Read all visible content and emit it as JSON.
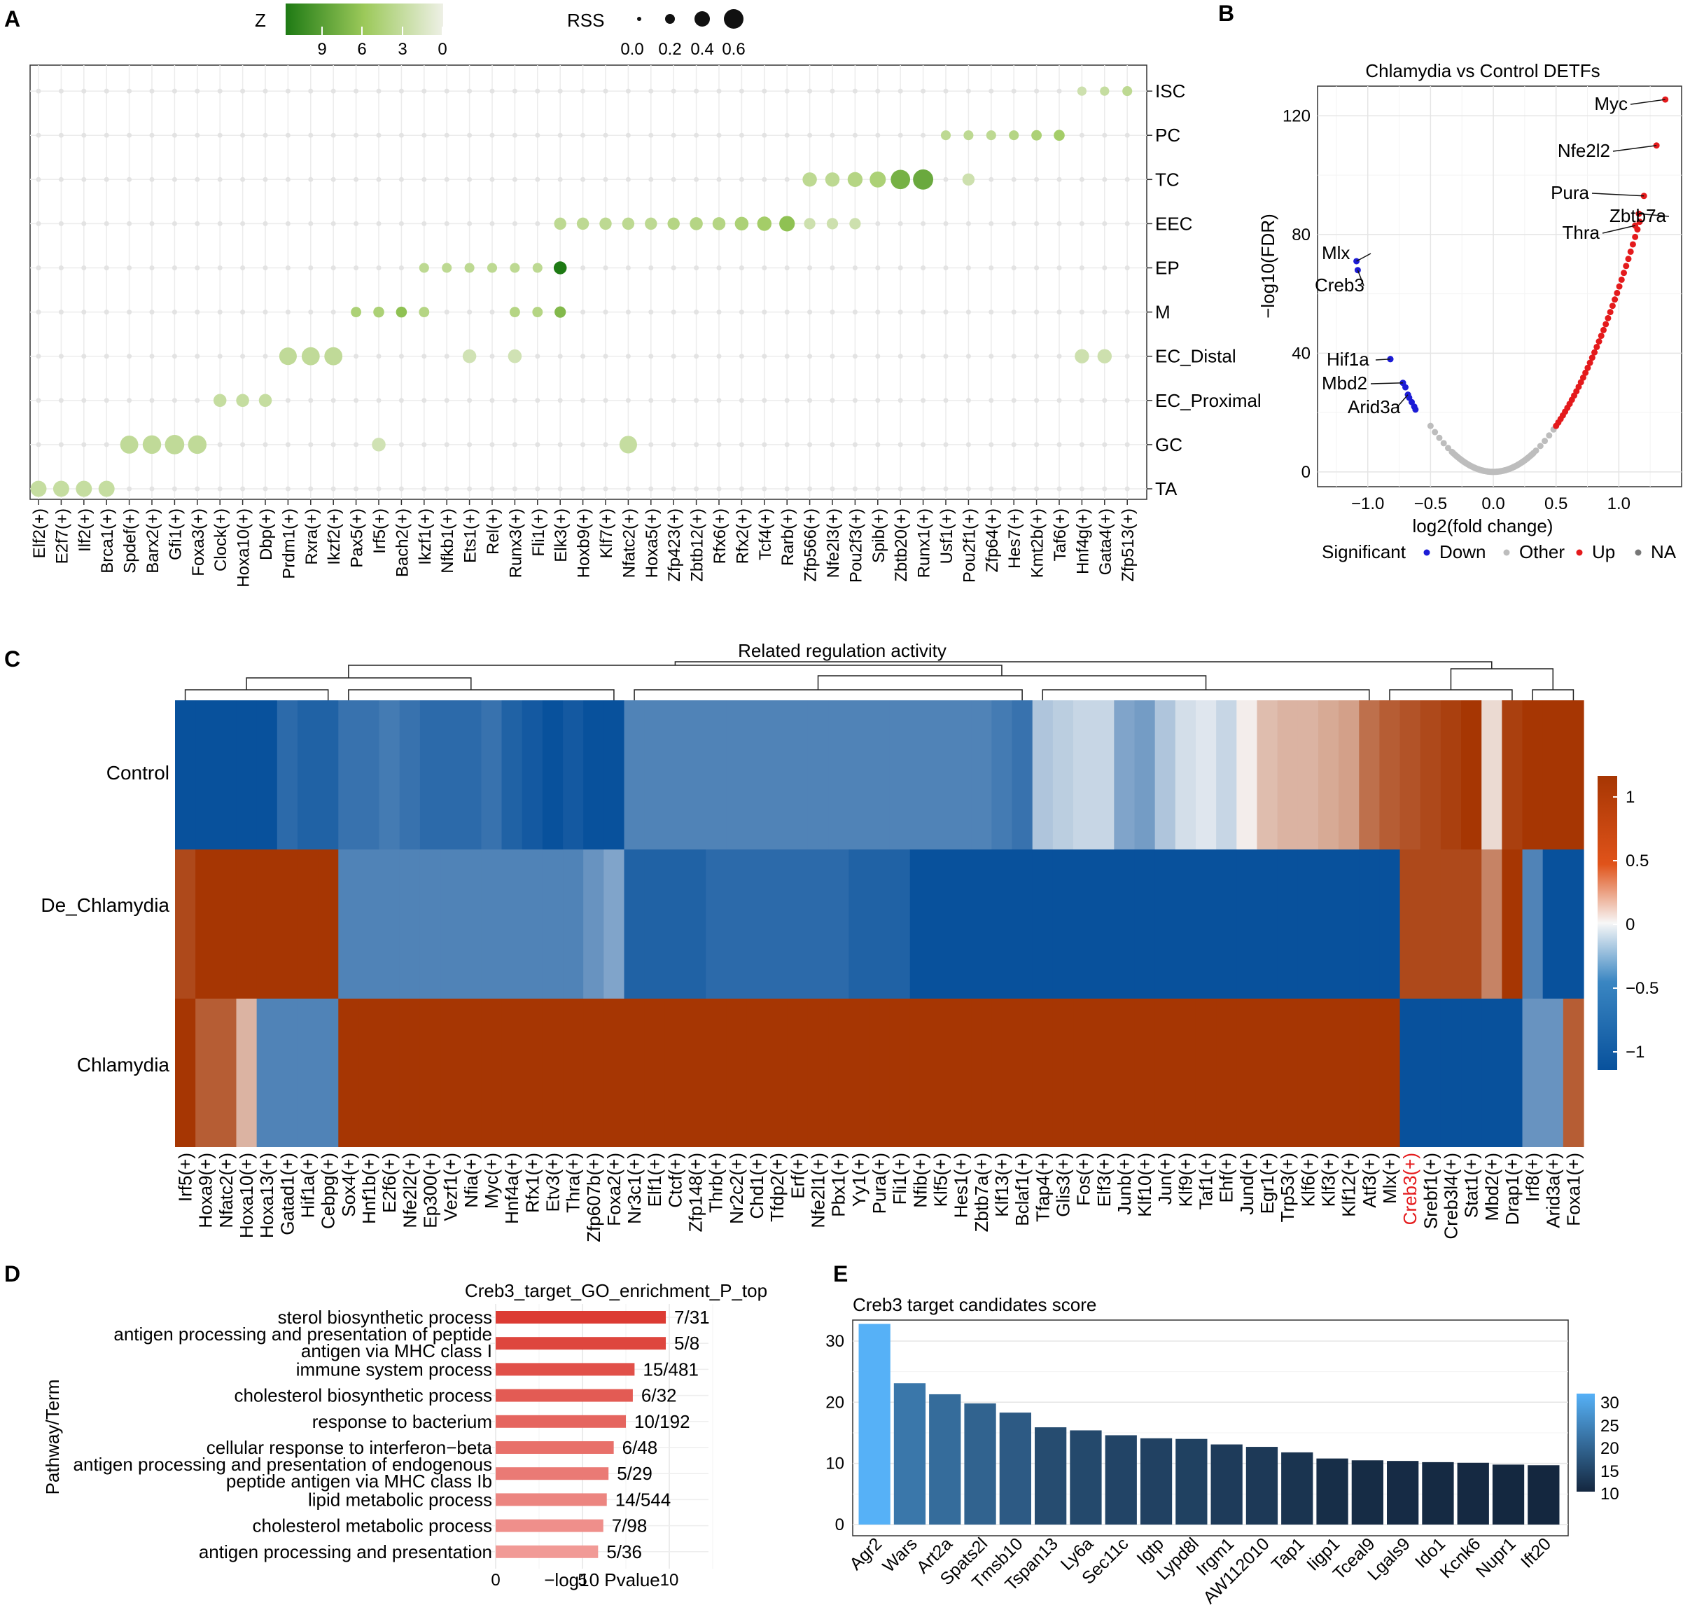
{
  "colors": {
    "z_dark": "#1e7a14",
    "z_mid": "#9cc95a",
    "z_light": "#eef0e6",
    "up": "#e41a1c",
    "down": "#1c1cd6",
    "other": "#bdbdbd",
    "heat_low": "#08519c",
    "heat_mid": "#f7f7f7",
    "heat_high": "#a63603",
    "go_dark": "#dc3b33",
    "go_light": "#f19a96",
    "e_low": "#14273f",
    "e_high": "#56b1f7"
  },
  "chart_data": [
    {
      "panel": "A",
      "panel_label": "A",
      "type": "scatter",
      "legend_z_title": "Z",
      "legend_z_ticks": [
        "9",
        "6",
        "3",
        "0"
      ],
      "legend_rss_title": "RSS",
      "legend_rss_labels": [
        "0.0",
        "0.2",
        "0.4",
        "0.6"
      ],
      "rows": [
        "TA",
        "GC",
        "EC_Proximal",
        "EC_Distal",
        "M",
        "EP",
        "EEC",
        "TC",
        "PC",
        "ISC"
      ],
      "columns": [
        "Elf2(+)",
        "E2f7(+)",
        "Ilf2(+)",
        "Brca1(+)",
        "Spdef(+)",
        "Barx2(+)",
        "Gfi1(+)",
        "Foxa3(+)",
        "Clock(+)",
        "Hoxa10(+)",
        "Dbp(+)",
        "Prdm1(+)",
        "Rxra(+)",
        "Ikzf2(+)",
        "Pax5(+)",
        "Irf5(+)",
        "Bach2(+)",
        "Ikzf1(+)",
        "Nfkb1(+)",
        "Ets1(+)",
        "Rel(+)",
        "Runx3(+)",
        "Fli1(+)",
        "Elk3(+)",
        "Hoxb9(+)",
        "Klf7(+)",
        "Nfatc2(+)",
        "Hoxa5(+)",
        "Zfp423(+)",
        "Zbtb12(+)",
        "Rfx6(+)",
        "Rfx2(+)",
        "Tcf4(+)",
        "Rarb(+)",
        "Zfp566(+)",
        "Nfe2l3(+)",
        "Pou2f3(+)",
        "Spib(+)",
        "Zbtb20(+)",
        "Runx1(+)",
        "Usf1(+)",
        "Pou2f1(+)",
        "Zfp64(+)",
        "Hes7(+)",
        "Kmt2b(+)",
        "Taf6(+)",
        "Hnf4g(+)",
        "Gata4(+)",
        "Zfp513(+)"
      ],
      "highlights": [
        {
          "row": "TA",
          "col": "Elf2(+)",
          "rss": 0.22,
          "z": 2.5
        },
        {
          "row": "TA",
          "col": "E2f7(+)",
          "rss": 0.22,
          "z": 2.5
        },
        {
          "row": "TA",
          "col": "Ilf2(+)",
          "rss": 0.22,
          "z": 2.5
        },
        {
          "row": "TA",
          "col": "Brca1(+)",
          "rss": 0.22,
          "z": 2.5
        },
        {
          "row": "GC",
          "col": "Spdef(+)",
          "rss": 0.3,
          "z": 2.8
        },
        {
          "row": "GC",
          "col": "Barx2(+)",
          "rss": 0.32,
          "z": 2.8
        },
        {
          "row": "GC",
          "col": "Gfi1(+)",
          "rss": 0.36,
          "z": 2.8
        },
        {
          "row": "GC",
          "col": "Foxa3(+)",
          "rss": 0.32,
          "z": 2.8
        },
        {
          "row": "GC",
          "col": "Nfatc2(+)",
          "rss": 0.28,
          "z": 2.5
        },
        {
          "row": "GC",
          "col": "Irf5(+)",
          "rss": 0.14,
          "z": 1.8
        },
        {
          "row": "EC_Proximal",
          "col": "Clock(+)",
          "rss": 0.12,
          "z": 2.5
        },
        {
          "row": "EC_Proximal",
          "col": "Hoxa10(+)",
          "rss": 0.12,
          "z": 2.5
        },
        {
          "row": "EC_Proximal",
          "col": "Dbp(+)",
          "rss": 0.12,
          "z": 2.5
        },
        {
          "row": "EC_Distal",
          "col": "Prdm1(+)",
          "rss": 0.28,
          "z": 2.8
        },
        {
          "row": "EC_Distal",
          "col": "Rxra(+)",
          "rss": 0.3,
          "z": 2.8
        },
        {
          "row": "EC_Distal",
          "col": "Ikzf2(+)",
          "rss": 0.3,
          "z": 2.8
        },
        {
          "row": "EC_Distal",
          "col": "Ets1(+)",
          "rss": 0.14,
          "z": 1.8
        },
        {
          "row": "EC_Distal",
          "col": "Runx3(+)",
          "rss": 0.14,
          "z": 1.8
        },
        {
          "row": "EC_Distal",
          "col": "Hnf4g(+)",
          "rss": 0.16,
          "z": 2.0
        },
        {
          "row": "EC_Distal",
          "col": "Gata4(+)",
          "rss": 0.16,
          "z": 2.0
        },
        {
          "row": "M",
          "col": "Pax5(+)",
          "rss": 0.06,
          "z": 4.0
        },
        {
          "row": "M",
          "col": "Irf5(+)",
          "rss": 0.07,
          "z": 4.0
        },
        {
          "row": "M",
          "col": "Bach2(+)",
          "rss": 0.07,
          "z": 5.5
        },
        {
          "row": "M",
          "col": "Ikzf1(+)",
          "rss": 0.06,
          "z": 3.5
        },
        {
          "row": "M",
          "col": "Runx3(+)",
          "rss": 0.06,
          "z": 3.5
        },
        {
          "row": "M",
          "col": "Fli1(+)",
          "rss": 0.06,
          "z": 3.5
        },
        {
          "row": "M",
          "col": "Elk3(+)",
          "rss": 0.08,
          "z": 6.0
        },
        {
          "row": "EP",
          "col": "Ikzf1(+)",
          "rss": 0.05,
          "z": 3.0
        },
        {
          "row": "EP",
          "col": "Nfkb1(+)",
          "rss": 0.05,
          "z": 3.0
        },
        {
          "row": "EP",
          "col": "Ets1(+)",
          "rss": 0.05,
          "z": 3.0
        },
        {
          "row": "EP",
          "col": "Rel(+)",
          "rss": 0.05,
          "z": 3.0
        },
        {
          "row": "EP",
          "col": "Runx3(+)",
          "rss": 0.05,
          "z": 3.0
        },
        {
          "row": "EP",
          "col": "Fli1(+)",
          "rss": 0.05,
          "z": 3.0
        },
        {
          "row": "EP",
          "col": "Elk3(+)",
          "rss": 0.12,
          "z": 10.0
        },
        {
          "row": "EEC",
          "col": "Elk3(+)",
          "rss": 0.1,
          "z": 3.0
        },
        {
          "row": "EEC",
          "col": "Hoxb9(+)",
          "rss": 0.1,
          "z": 3.0
        },
        {
          "row": "EEC",
          "col": "Klf7(+)",
          "rss": 0.1,
          "z": 3.0
        },
        {
          "row": "EEC",
          "col": "Nfatc2(+)",
          "rss": 0.1,
          "z": 3.0
        },
        {
          "row": "EEC",
          "col": "Hoxa5(+)",
          "rss": 0.1,
          "z": 3.0
        },
        {
          "row": "EEC",
          "col": "Zfp423(+)",
          "rss": 0.1,
          "z": 3.5
        },
        {
          "row": "EEC",
          "col": "Zbtb12(+)",
          "rss": 0.12,
          "z": 3.5
        },
        {
          "row": "EEC",
          "col": "Rfx6(+)",
          "rss": 0.12,
          "z": 3.5
        },
        {
          "row": "EEC",
          "col": "Rfx2(+)",
          "rss": 0.14,
          "z": 4.0
        },
        {
          "row": "EEC",
          "col": "Tcf4(+)",
          "rss": 0.16,
          "z": 4.5
        },
        {
          "row": "EEC",
          "col": "Rarb(+)",
          "rss": 0.2,
          "z": 5.5
        },
        {
          "row": "EEC",
          "col": "Zfp566(+)",
          "rss": 0.08,
          "z": 2.0
        },
        {
          "row": "EEC",
          "col": "Nfe2l3(+)",
          "rss": 0.08,
          "z": 2.0
        },
        {
          "row": "EEC",
          "col": "Pou2f3(+)",
          "rss": 0.08,
          "z": 2.0
        },
        {
          "row": "TC",
          "col": "Zfp566(+)",
          "rss": 0.16,
          "z": 3.0
        },
        {
          "row": "TC",
          "col": "Nfe2l3(+)",
          "rss": 0.16,
          "z": 3.0
        },
        {
          "row": "TC",
          "col": "Pou2f3(+)",
          "rss": 0.18,
          "z": 3.5
        },
        {
          "row": "TC",
          "col": "Spib(+)",
          "rss": 0.22,
          "z": 4.0
        },
        {
          "row": "TC",
          "col": "Zbtb20(+)",
          "rss": 0.36,
          "z": 6.5
        },
        {
          "row": "TC",
          "col": "Runx1(+)",
          "rss": 0.4,
          "z": 7.0
        },
        {
          "row": "TC",
          "col": "Pou2f1(+)",
          "rss": 0.1,
          "z": 2.0
        },
        {
          "row": "PC",
          "col": "Usf1(+)",
          "rss": 0.05,
          "z": 3.0
        },
        {
          "row": "PC",
          "col": "Pou2f1(+)",
          "rss": 0.05,
          "z": 3.0
        },
        {
          "row": "PC",
          "col": "Zfp64(+)",
          "rss": 0.05,
          "z": 3.0
        },
        {
          "row": "PC",
          "col": "Hes7(+)",
          "rss": 0.05,
          "z": 3.5
        },
        {
          "row": "PC",
          "col": "Kmt2b(+)",
          "rss": 0.06,
          "z": 4.0
        },
        {
          "row": "PC",
          "col": "Taf6(+)",
          "rss": 0.07,
          "z": 4.5
        },
        {
          "row": "ISC",
          "col": "Hnf4g(+)",
          "rss": 0.04,
          "z": 2.0
        },
        {
          "row": "ISC",
          "col": "Gata4(+)",
          "rss": 0.04,
          "z": 2.5
        },
        {
          "row": "ISC",
          "col": "Zfp513(+)",
          "rss": 0.05,
          "z": 3.0
        }
      ]
    },
    {
      "panel": "B",
      "panel_label": "B",
      "type": "scatter",
      "title": "Chlamydia vs Control DETFs",
      "xlabel": "log2(fold change)",
      "ylabel": "−log10(FDR)",
      "xlim": [
        -1.4,
        1.5
      ],
      "ylim": [
        -5,
        130
      ],
      "xticks": [
        "−1.0",
        "−0.5",
        "0.0",
        "0.5",
        "1.0"
      ],
      "yticks": [
        "0",
        "40",
        "80",
        "120"
      ],
      "legend_title": "Significant",
      "legend_items": [
        "Down",
        "Other",
        "Up",
        "NA"
      ],
      "labels": [
        {
          "text": "Myc",
          "x": 1.37,
          "y": 125.5
        },
        {
          "text": "Nfe2l2",
          "x": 1.3,
          "y": 110
        },
        {
          "text": "Pura",
          "x": 1.2,
          "y": 93
        },
        {
          "text": "Zbtb7a",
          "x": 1.16,
          "y": 87
        },
        {
          "text": "Thra",
          "x": 1.13,
          "y": 83
        },
        {
          "text": "Mlx",
          "x": -1.09,
          "y": 71
        },
        {
          "text": "Creb3",
          "x": -1.08,
          "y": 68
        },
        {
          "text": "Hif1a",
          "x": -0.82,
          "y": 38
        },
        {
          "text": "Mbd2",
          "x": -0.72,
          "y": 30
        },
        {
          "text": "Arid3a",
          "x": -0.68,
          "y": 26
        }
      ],
      "down_points": [
        [
          -0.82,
          38
        ],
        [
          -0.72,
          30
        ],
        [
          -0.7,
          28.5
        ],
        [
          -0.68,
          26
        ],
        [
          -0.67,
          25
        ],
        [
          -0.65,
          23.5
        ],
        [
          -0.63,
          22
        ],
        [
          -0.62,
          21
        ]
      ]
    },
    {
      "panel": "C",
      "panel_label": "C",
      "type": "heatmap",
      "title": "Related regulation activity",
      "rows": [
        "Control",
        "De_Chlamydia",
        "Chlamydia"
      ],
      "columns": [
        "Irf5(+)",
        "Hoxa9(+)",
        "Nfatc2(+)",
        "Hoxa10(+)",
        "Hoxa13(+)",
        "Gatad1(+)",
        "Hif1a(+)",
        "Cebpg(+)",
        "Sox4(+)",
        "Hnf1b(+)",
        "E2f6(+)",
        "Nfe2l2(+)",
        "Ep300(+)",
        "Vezf1(+)",
        "Nfia(+)",
        "Myc(+)",
        "Hnf4a(+)",
        "Rfx1(+)",
        "Etv3(+)",
        "Thra(+)",
        "Zfp607b(+)",
        "Foxa2(+)",
        "Nr3c1(+)",
        "Elf1(+)",
        "Ctcf(+)",
        "Zfp148(+)",
        "Thrb(+)",
        "Nr2c2(+)",
        "Chd1(+)",
        "Tfdp2(+)",
        "Erf(+)",
        "Nfe2l1(+)",
        "Pbx1(+)",
        "Yy1(+)",
        "Pura(+)",
        "Fli1(+)",
        "Nfib(+)",
        "Klf5(+)",
        "Hes1(+)",
        "Zbtb7a(+)",
        "Klf13(+)",
        "Bclaf1(+)",
        "Tfap4(+)",
        "Glis3(+)",
        "Fos(+)",
        "Elf3(+)",
        "Junb(+)",
        "Klf10(+)",
        "Jun(+)",
        "Klf9(+)",
        "Taf1(+)",
        "Ehf(+)",
        "Jund(+)",
        "Egr1(+)",
        "Trp53(+)",
        "Klf6(+)",
        "Klf3(+)",
        "Klf12(+)",
        "Atf3(+)",
        "Mlx(+)",
        "Creb3(+)",
        "Srebf1(+)",
        "Creb3l4(+)",
        "Stat1(+)",
        "Mbd2(+)",
        "Drap1(+)",
        "Irf8(+)",
        "Arid3a(+)",
        "Foxa1(+)"
      ],
      "highlight_column": "Creb3(+)",
      "values": [
        [
          -1.1,
          -1.1,
          -1.1,
          -1.1,
          -1.1,
          -0.85,
          -0.9,
          -0.9,
          -0.8,
          -0.8,
          -0.75,
          -0.8,
          -0.85,
          -0.85,
          -0.85,
          -0.8,
          -0.9,
          -0.95,
          -1.0,
          -0.95,
          -1.1,
          -1.1,
          -0.7,
          -0.7,
          -0.7,
          -0.7,
          -0.7,
          -0.7,
          -0.7,
          -0.7,
          -0.7,
          -0.7,
          -0.7,
          -0.7,
          -0.7,
          -0.7,
          -0.7,
          -0.7,
          -0.7,
          -0.7,
          -0.75,
          -0.8,
          -0.3,
          -0.25,
          -0.2,
          -0.2,
          -0.5,
          -0.55,
          -0.3,
          -0.15,
          -0.1,
          -0.2,
          0.05,
          0.3,
          0.35,
          0.35,
          0.4,
          0.45,
          0.7,
          0.8,
          0.85,
          0.9,
          0.95,
          1.0,
          0.15,
          0.95,
          1.1,
          1.1,
          1.1
        ],
        [
          0.9,
          1.0,
          1.1,
          1.1,
          1.1,
          1.1,
          1.1,
          1.1,
          -0.7,
          -0.7,
          -0.7,
          -0.7,
          -0.7,
          -0.7,
          -0.7,
          -0.7,
          -0.7,
          -0.7,
          -0.7,
          -0.7,
          -0.6,
          -0.5,
          -0.9,
          -0.9,
          -0.9,
          -0.9,
          -0.85,
          -0.85,
          -0.85,
          -0.85,
          -0.85,
          -0.85,
          -0.85,
          -0.9,
          -0.9,
          -0.9,
          -1.0,
          -1.0,
          -1.0,
          -1.0,
          -1.0,
          -1.0,
          -1.1,
          -1.1,
          -1.1,
          -1.1,
          -1.1,
          -1.1,
          -1.1,
          -1.1,
          -1.1,
          -1.1,
          -1.1,
          -1.1,
          -1.1,
          -1.1,
          -1.1,
          -1.1,
          -1.1,
          -1.1,
          0.9,
          0.9,
          0.9,
          0.9,
          0.6,
          1.1,
          -0.7,
          -1.1,
          -1.1
        ],
        [
          1.1,
          0.8,
          0.8,
          0.35,
          -0.7,
          -0.7,
          -0.7,
          -0.7,
          1.1,
          1.1,
          1.1,
          1.1,
          1.1,
          1.1,
          1.1,
          1.1,
          1.1,
          1.1,
          1.1,
          1.1,
          1.1,
          1.1,
          1.1,
          1.1,
          1.1,
          1.1,
          1.1,
          1.1,
          1.1,
          1.1,
          1.1,
          1.1,
          1.1,
          1.1,
          1.1,
          1.1,
          1.1,
          1.1,
          1.1,
          1.1,
          1.1,
          1.1,
          1.1,
          1.1,
          1.1,
          1.1,
          1.1,
          1.1,
          1.1,
          1.1,
          1.1,
          1.1,
          1.1,
          1.1,
          1.1,
          1.1,
          1.1,
          1.1,
          1.1,
          1.1,
          -1.0,
          -1.0,
          -1.0,
          -1.0,
          -1.0,
          -1.0,
          -0.6,
          -0.6,
          0.8
        ]
      ],
      "colorbar_ticks": [
        "1",
        "0.5",
        "0",
        "−0.5",
        "−1"
      ]
    },
    {
      "panel": "D",
      "panel_label": "D",
      "type": "bar",
      "title": "Creb3_target_GO_enrichment_P_top",
      "ylabel": "Pathway/Term",
      "xlabel": "−log10 Pvalue",
      "xticks": [
        "0",
        "5",
        "10"
      ],
      "terms": [
        {
          "label": "sterol biosynthetic process",
          "value": 9.8,
          "count": "7/31"
        },
        {
          "label": "antigen processing and presentation of peptide antigen via MHC class I",
          "label_lines": [
            "antigen processing and presentation of peptide",
            "antigen via MHC class I"
          ],
          "value": 9.8,
          "count": "5/8"
        },
        {
          "label": "immune system process",
          "value": 8.0,
          "count": "15/481"
        },
        {
          "label": "cholesterol biosynthetic process",
          "value": 7.9,
          "count": "6/32"
        },
        {
          "label": "response to bacterium",
          "value": 7.5,
          "count": "10/192"
        },
        {
          "label": "cellular response to interferon−beta",
          "value": 6.8,
          "count": "6/48"
        },
        {
          "label": "antigen processing and presentation of endogenous peptide antigen via MHC class Ib",
          "label_lines": [
            "antigen processing and presentation of endogenous",
            "peptide antigen via MHC class Ib"
          ],
          "value": 6.5,
          "count": "5/29"
        },
        {
          "label": "lipid metabolic process",
          "value": 6.4,
          "count": "14/544"
        },
        {
          "label": "cholesterol metabolic process",
          "value": 6.2,
          "count": "7/98"
        },
        {
          "label": "antigen processing and presentation",
          "value": 5.9,
          "count": "5/36"
        }
      ]
    },
    {
      "panel": "E",
      "panel_label": "E",
      "type": "bar",
      "title": "Creb3 target candidates score",
      "ylim": [
        0,
        34
      ],
      "yticks": [
        "0",
        "10",
        "20",
        "30"
      ],
      "colorbar_ticks": [
        "30",
        "25",
        "20",
        "15",
        "10"
      ],
      "categories": [
        "Agr2",
        "Wars",
        "Art2a",
        "Spats2l",
        "Tmsb10",
        "Tspan13",
        "Ly6a",
        "Sec11c",
        "Igtp",
        "Lypd8l",
        "Irgm1",
        "AW112010",
        "Tap1",
        "Iigp1",
        "Tceal9",
        "Lgals9",
        "Ido1",
        "Kcnk6",
        "Nupr1",
        "Ift20"
      ],
      "values": [
        32.8,
        23.1,
        21.3,
        19.8,
        18.3,
        15.9,
        15.4,
        14.6,
        14.1,
        14.0,
        13.1,
        12.7,
        11.8,
        10.8,
        10.5,
        10.4,
        10.2,
        10.1,
        9.8,
        9.7
      ]
    }
  ]
}
